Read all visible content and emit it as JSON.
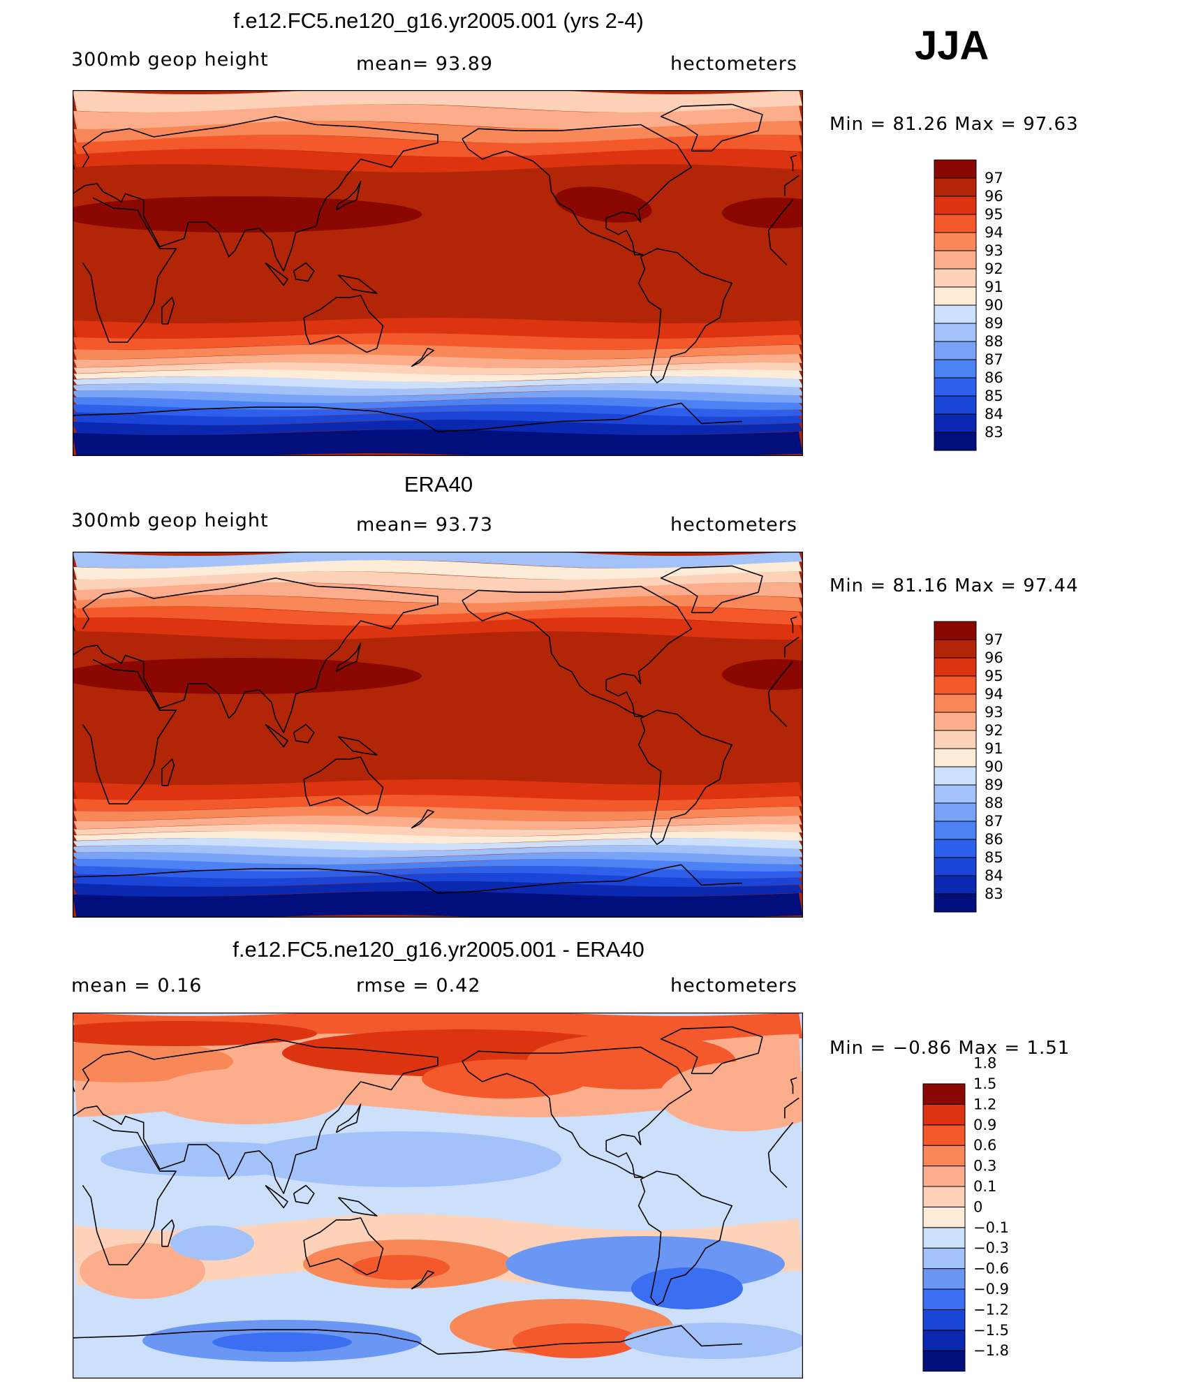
{
  "season": "JJA",
  "palettes": {
    "height": [
      "#000f7c",
      "#0a28b0",
      "#1a45d6",
      "#2e60ec",
      "#4d82f4",
      "#78a3f6",
      "#a3c2f9",
      "#cde0fb",
      "#fdecd8",
      "#fdd2b8",
      "#fcae8c",
      "#f98858",
      "#f4592c",
      "#dc3411",
      "#b22506",
      "#8a0702"
    ],
    "diff": [
      "#000f7c",
      "#0a28b0",
      "#1a45d6",
      "#3b6ef0",
      "#6b97f4",
      "#a3c2f9",
      "#cde0fb",
      "#fdecd8",
      "#fdd2b8",
      "#fcae8c",
      "#f98858",
      "#f4592c",
      "#dc3411",
      "#8a0702"
    ]
  },
  "panels": [
    {
      "title": "f.e12.FC5.ne120_g16.yr2005.001 (yrs 2-4)",
      "left": "300mb  geop  height",
      "center": "mean=   93.89",
      "right": "hectometers",
      "minmax": "Min  =    81.26  Max  =    97.63"
    },
    {
      "title": "ERA40",
      "left": "300mb  geop  height",
      "center": "mean=   93.73",
      "right": "hectometers",
      "minmax": "Min  =    81.16  Max  =    97.44"
    },
    {
      "title": "f.e12.FC5.ne120_g16.yr2005.001 - ERA40",
      "left": "mean  =      0.16",
      "center": "rmse  =      0.42",
      "right": "hectometers",
      "minmax": "Min  =    −0.86  Max  =      1.51"
    }
  ],
  "chart_data": [
    {
      "type": "heatmap",
      "title": "f.e12.FC5.ne120_g16.yr2005.001 (yrs 2-4)",
      "variable": "300mb geop height",
      "units": "hectometers",
      "mean": 93.89,
      "min": 81.26,
      "max": 97.63,
      "contour_levels": [
        "83",
        "84",
        "85",
        "86",
        "87",
        "88",
        "89",
        "90",
        "91",
        "92",
        "93",
        "94",
        "95",
        "96",
        "97"
      ]
    },
    {
      "type": "heatmap",
      "title": "ERA40",
      "variable": "300mb geop height",
      "units": "hectometers",
      "mean": 93.73,
      "min": 81.16,
      "max": 97.44,
      "contour_levels": [
        "83",
        "84",
        "85",
        "86",
        "87",
        "88",
        "89",
        "90",
        "91",
        "92",
        "93",
        "94",
        "95",
        "96",
        "97"
      ]
    },
    {
      "type": "heatmap",
      "title": "f.e12.FC5.ne120_g16.yr2005.001 - ERA40",
      "units": "hectometers",
      "mean": 0.16,
      "rmse": 0.42,
      "min": -0.86,
      "max": 1.51,
      "contour_levels": [
        "−1.8",
        "−1.5",
        "−1.2",
        "−0.9",
        "−0.6",
        "−0.3",
        "−0.1",
        "0",
        "0.1",
        "0.3",
        "0.6",
        "0.9",
        "1.2",
        "1.5",
        "1.8"
      ]
    }
  ]
}
